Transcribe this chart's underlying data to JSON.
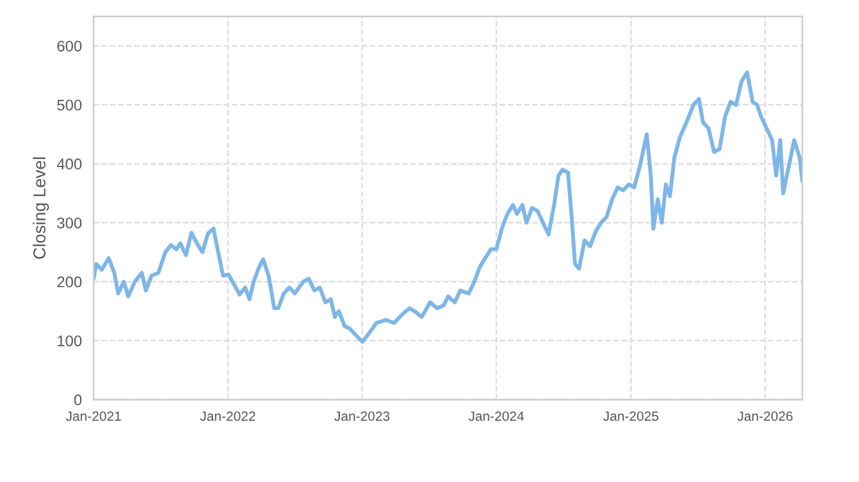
{
  "chart_data": {
    "type": "line",
    "ylabel": "Closing Level",
    "x": [
      "2021-01-01",
      "2021-01-08",
      "2021-01-23",
      "2021-02-11",
      "2021-02-26",
      "2021-03-09",
      "2021-03-24",
      "2021-04-05",
      "2021-04-23",
      "2021-05-12",
      "2021-05-23",
      "2021-06-07",
      "2021-06-26",
      "2021-07-15",
      "2021-07-30",
      "2021-08-14",
      "2021-08-25",
      "2021-09-09",
      "2021-09-24",
      "2021-10-09",
      "2021-10-24",
      "2021-11-08",
      "2021-11-23",
      "2021-12-04",
      "2021-12-19",
      "2022-01-03",
      "2022-01-18",
      "2022-02-02",
      "2022-02-17",
      "2022-03-01",
      "2022-03-12",
      "2022-03-27",
      "2022-04-07",
      "2022-04-22",
      "2022-05-07",
      "2022-05-18",
      "2022-06-02",
      "2022-06-17",
      "2022-07-02",
      "2022-07-25",
      "2022-08-09",
      "2022-08-24",
      "2022-09-08",
      "2022-09-23",
      "2022-10-08",
      "2022-10-19",
      "2022-10-30",
      "2022-11-14",
      "2022-11-29",
      "2022-12-14",
      "2023-01-02",
      "2023-01-17",
      "2023-02-09",
      "2023-03-07",
      "2023-03-29",
      "2023-04-21",
      "2023-05-10",
      "2023-05-28",
      "2023-06-12",
      "2023-07-05",
      "2023-07-24",
      "2023-08-11",
      "2023-08-23",
      "2023-09-10",
      "2023-09-25",
      "2023-10-18",
      "2023-11-02",
      "2023-11-17",
      "2023-12-02",
      "2023-12-17",
      "2024-01-01",
      "2024-01-16",
      "2024-01-31",
      "2024-02-15",
      "2024-02-26",
      "2024-03-12",
      "2024-03-23",
      "2024-04-07",
      "2024-04-22",
      "2024-05-07",
      "2024-05-22",
      "2024-06-06",
      "2024-06-18",
      "2024-06-29",
      "2024-07-14",
      "2024-07-25",
      "2024-08-02",
      "2024-08-13",
      "2024-08-28",
      "2024-09-12",
      "2024-09-27",
      "2024-10-12",
      "2024-10-27",
      "2024-11-11",
      "2024-11-26",
      "2024-12-11",
      "2024-12-26",
      "2025-01-10",
      "2025-01-25",
      "2025-02-13",
      "2025-02-24",
      "2025-03-03",
      "2025-03-15",
      "2025-03-26",
      "2025-04-06",
      "2025-04-17",
      "2025-04-29",
      "2025-05-14",
      "2025-06-01",
      "2025-06-20",
      "2025-07-05",
      "2025-07-16",
      "2025-07-31",
      "2025-08-15",
      "2025-08-30",
      "2025-09-14",
      "2025-09-29",
      "2025-10-14",
      "2025-10-29",
      "2025-11-13",
      "2025-11-28",
      "2025-12-10",
      "2025-12-21",
      "2026-01-05",
      "2026-01-20",
      "2026-01-31",
      "2026-02-11",
      "2026-02-19",
      "2026-03-06",
      "2026-03-21",
      "2026-04-05",
      "2026-04-12"
    ],
    "series": [
      {
        "color": "#7eb6e8",
        "values": [
          205,
          230,
          220,
          240,
          215,
          180,
          200,
          175,
          200,
          215,
          185,
          210,
          215,
          250,
          262,
          255,
          265,
          245,
          283,
          265,
          250,
          282,
          290,
          255,
          210,
          212,
          195,
          178,
          190,
          170,
          200,
          225,
          238,
          210,
          155,
          155,
          180,
          190,
          180,
          200,
          205,
          185,
          190,
          165,
          170,
          140,
          150,
          125,
          120,
          110,
          98,
          110,
          130,
          135,
          130,
          145,
          155,
          148,
          140,
          165,
          155,
          160,
          175,
          165,
          185,
          180,
          200,
          225,
          240,
          255,
          255,
          290,
          315,
          330,
          315,
          330,
          300,
          325,
          320,
          300,
          280,
          330,
          380,
          390,
          385,
          300,
          230,
          222,
          270,
          260,
          285,
          300,
          310,
          340,
          360,
          355,
          365,
          360,
          395,
          450,
          380,
          290,
          340,
          300,
          365,
          345,
          410,
          445,
          470,
          500,
          510,
          470,
          460,
          420,
          425,
          480,
          505,
          500,
          540,
          555,
          505,
          500,
          480,
          460,
          440,
          380,
          440,
          350,
          395,
          440,
          410,
          370
        ]
      }
    ],
    "xlim": [
      "2021-01-01",
      "2026-04-12"
    ],
    "xticks": [
      {
        "value": "2021-01-01",
        "label": "Jan-2021"
      },
      {
        "value": "2022-01-01",
        "label": "Jan-2022"
      },
      {
        "value": "2023-01-01",
        "label": "Jan-2023"
      },
      {
        "value": "2024-01-01",
        "label": "Jan-2024"
      },
      {
        "value": "2025-01-01",
        "label": "Jan-2025"
      },
      {
        "value": "2026-01-01",
        "label": "Jan-2026"
      }
    ],
    "ylim": [
      0,
      650
    ],
    "yticks": [
      0,
      100,
      200,
      300,
      400,
      500,
      600
    ],
    "grid": true,
    "legend": false,
    "line_style": "solid",
    "marker": "none"
  }
}
